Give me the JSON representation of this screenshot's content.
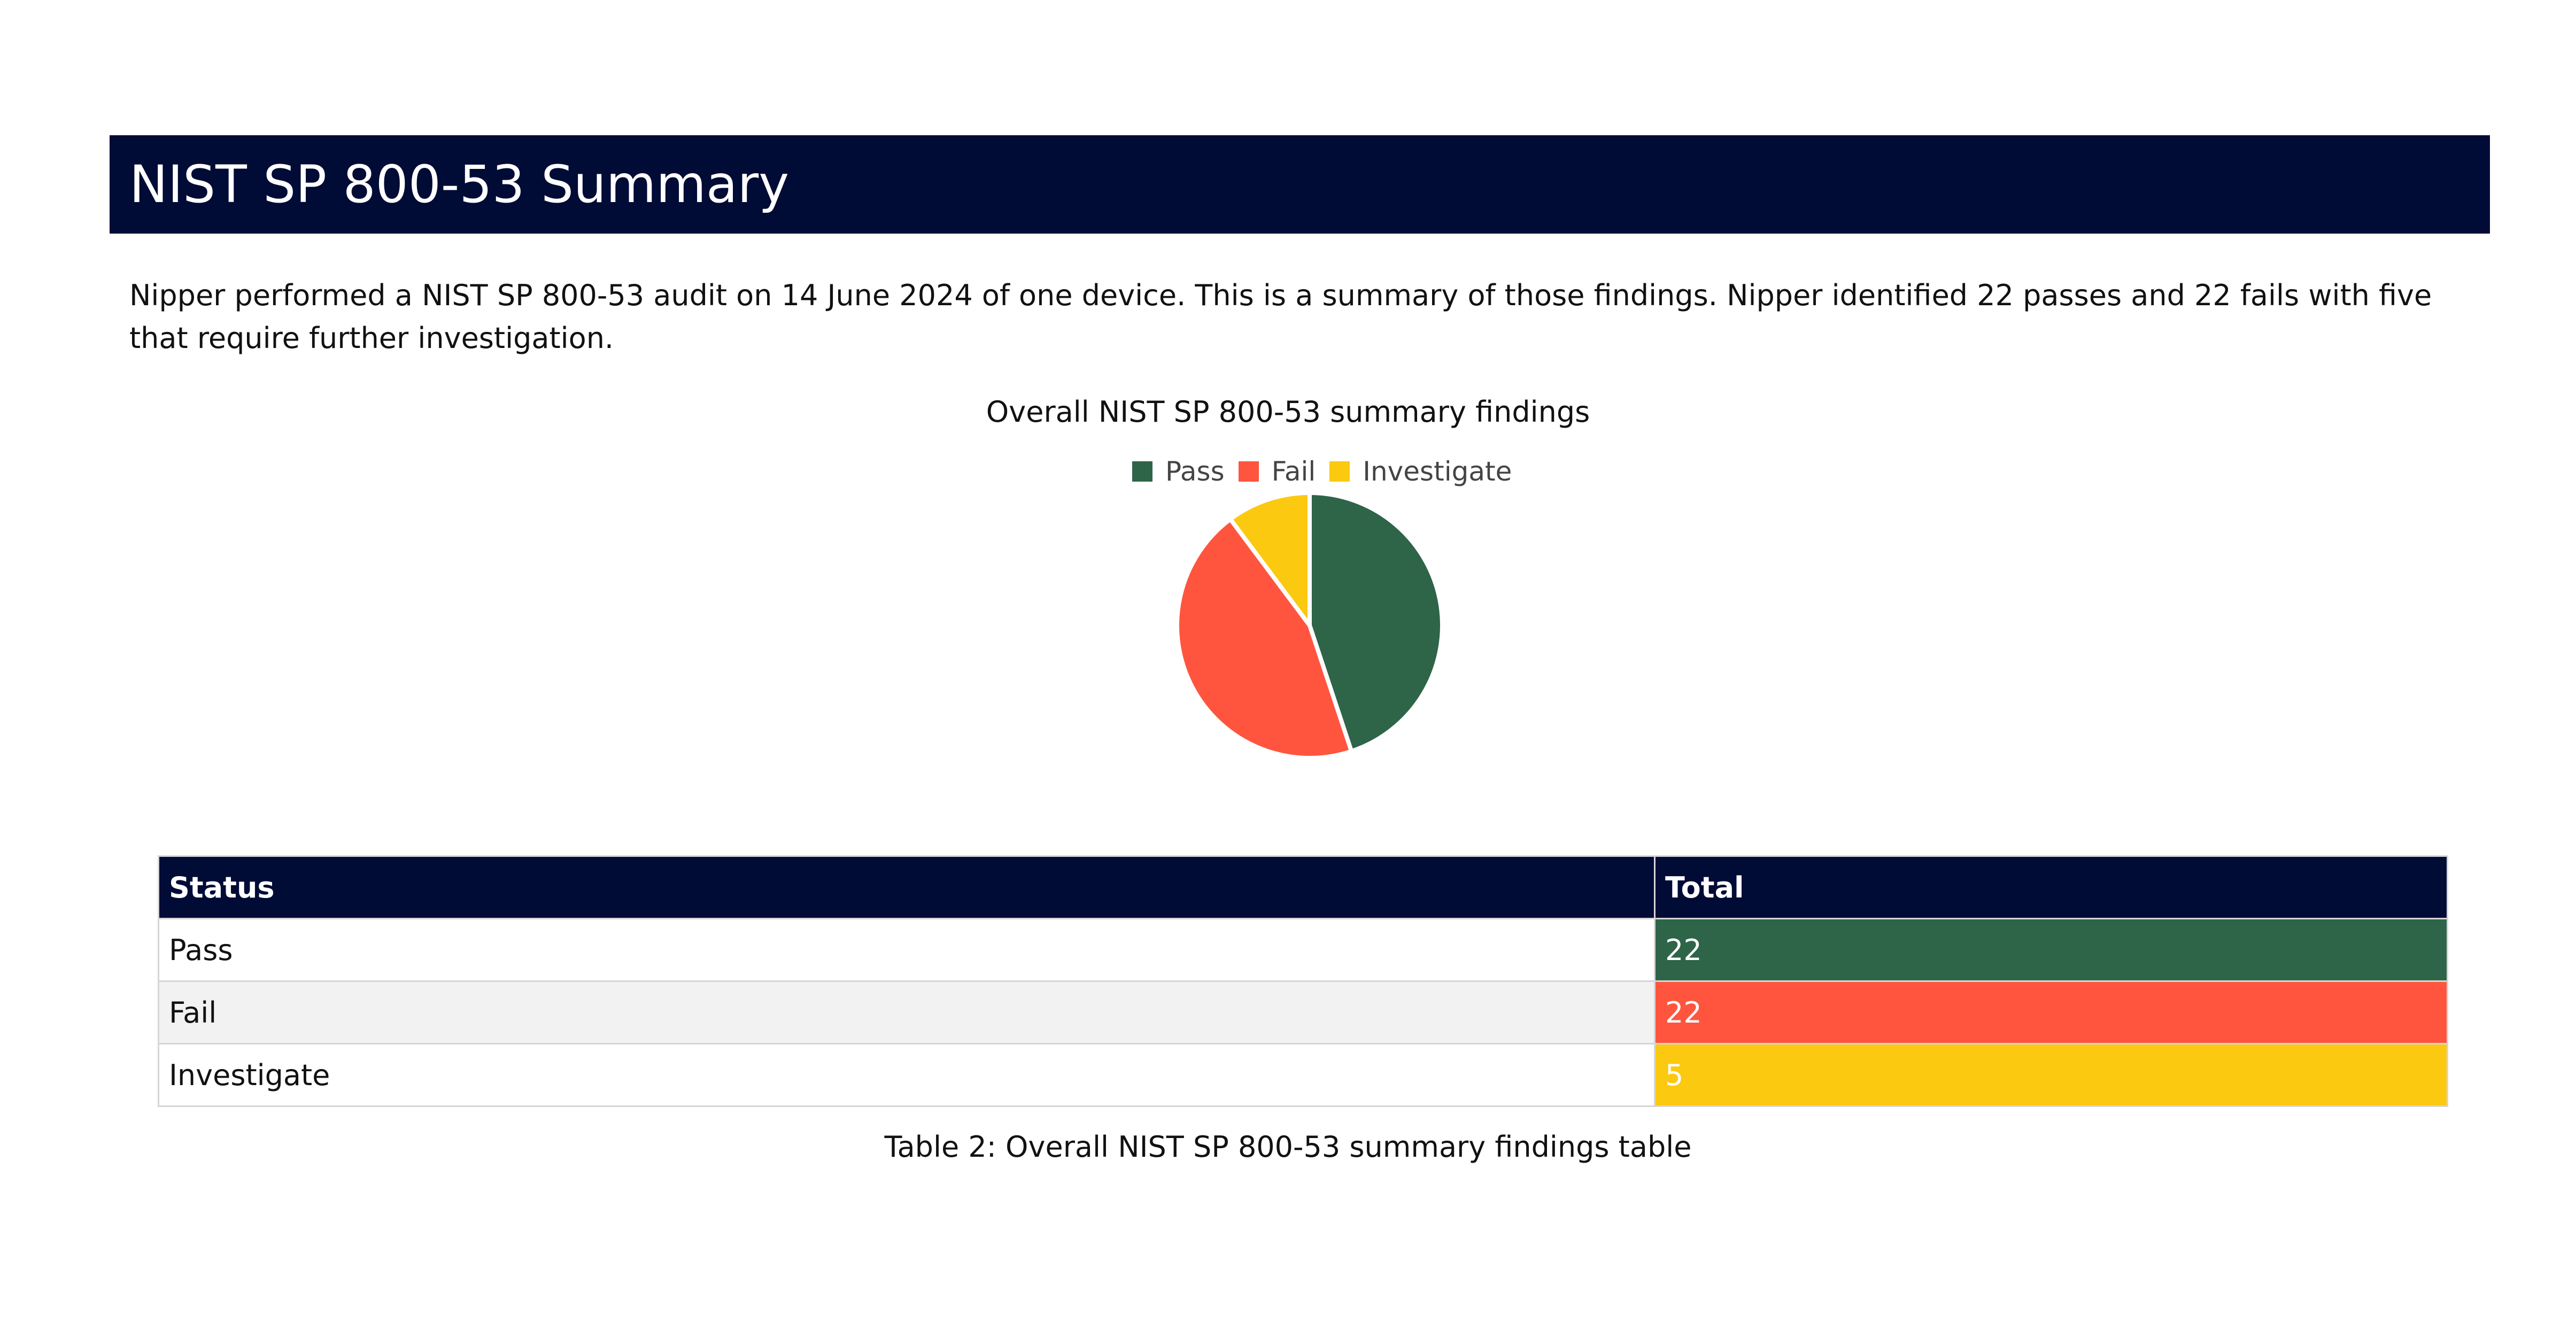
{
  "header": {
    "title": "NIST SP 800-53 Summary"
  },
  "intro": {
    "text": "Nipper performed a NIST SP 800-53 audit on 14 June 2024 of one device. This is a summary of those findings. Nipper identified 22 passes and 22 fails with five that require further investigation."
  },
  "colors": {
    "header_bg": "#000b36",
    "pass": "#2e6448",
    "fail": "#ff553e",
    "investigate": "#fcc911"
  },
  "chart_data": {
    "type": "pie",
    "title": "Overall NIST SP 800-53 summary findings",
    "categories": [
      "Pass",
      "Fail",
      "Investigate"
    ],
    "values": [
      22,
      22,
      5
    ],
    "colors": [
      "#2e6448",
      "#ff553e",
      "#fcc911"
    ],
    "legend": "top"
  },
  "table": {
    "headers": [
      "Status",
      "Total"
    ],
    "rows": [
      {
        "status": "Pass",
        "total": "22"
      },
      {
        "status": "Fail",
        "total": "22"
      },
      {
        "status": "Investigate",
        "total": "5"
      }
    ],
    "caption": "Table 2: Overall NIST SP 800-53 summary findings table"
  }
}
